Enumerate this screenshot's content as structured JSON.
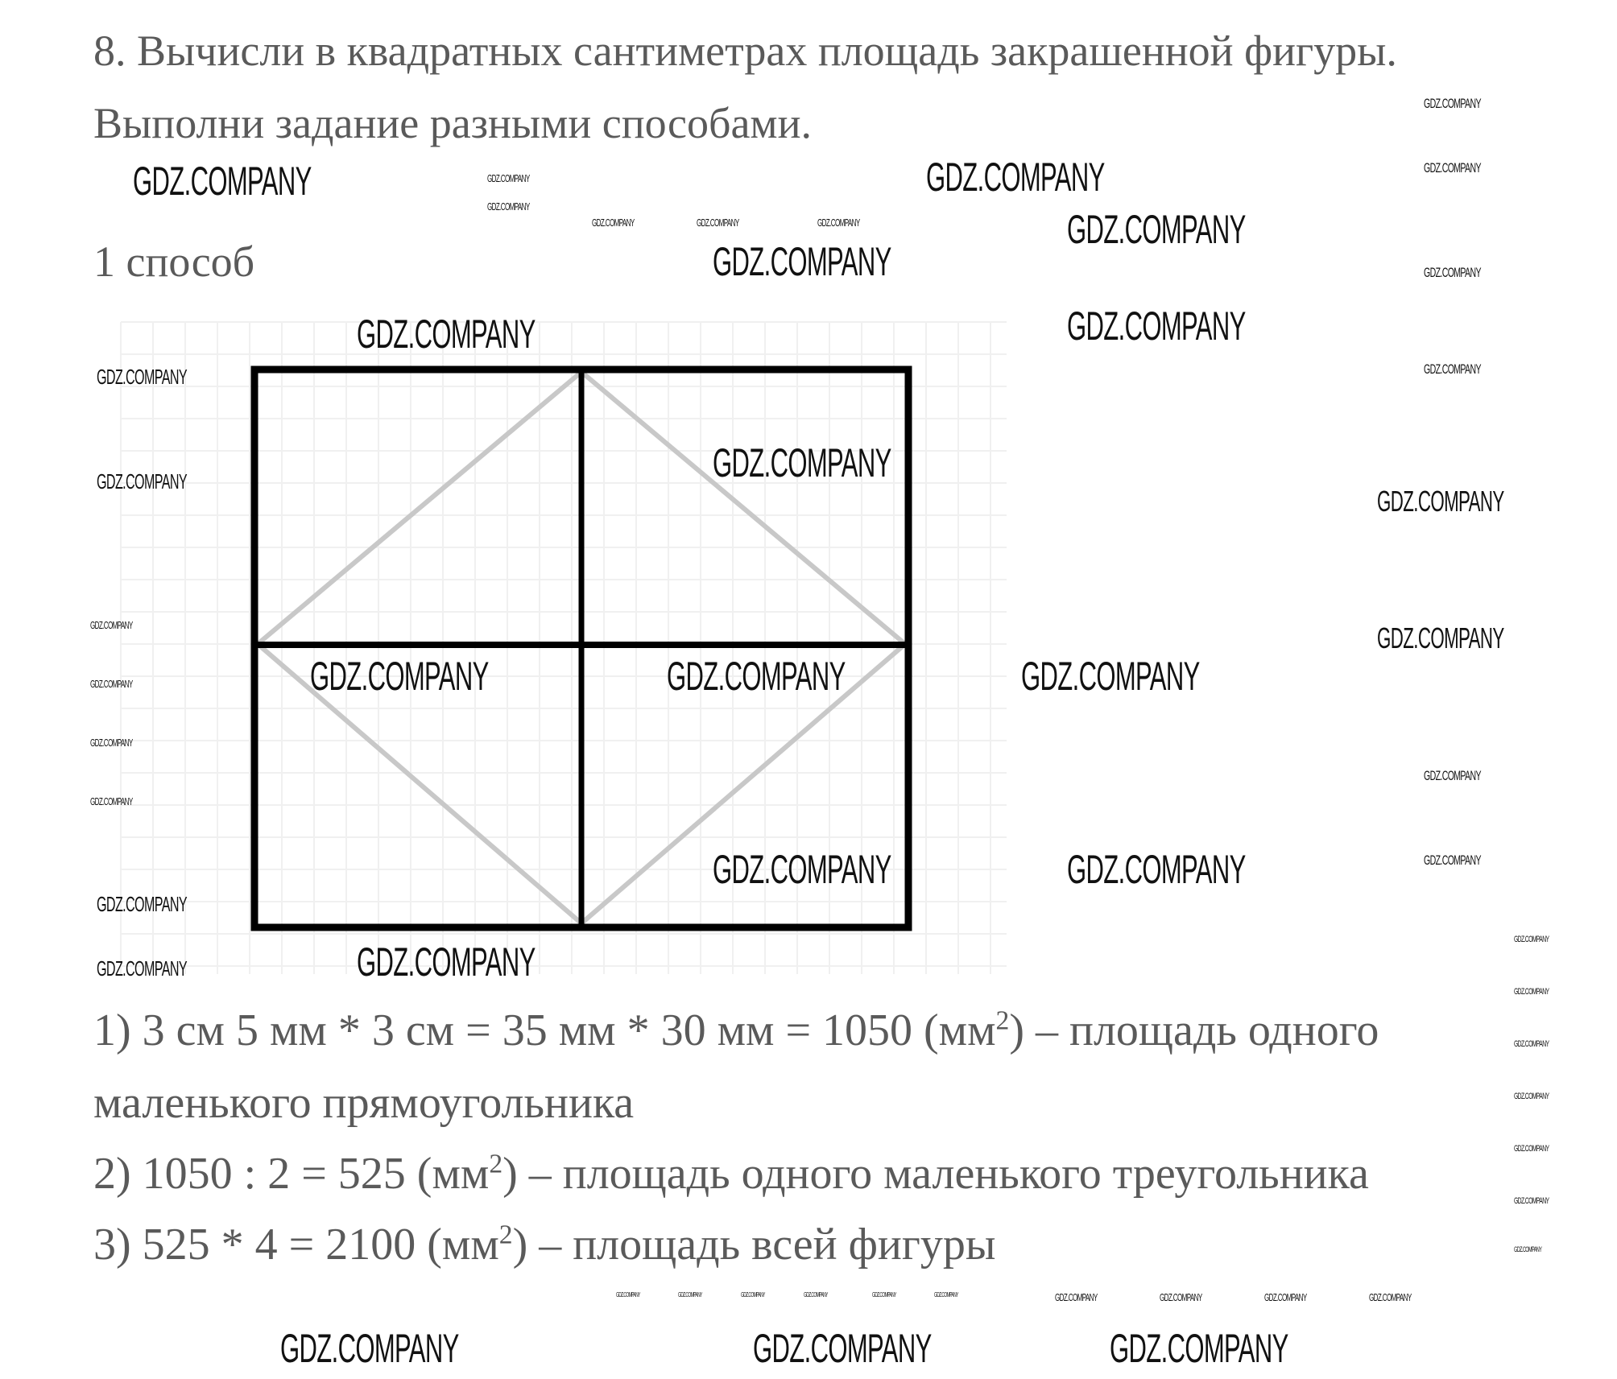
{
  "task": {
    "line1": "8. Вычисли в квадратных сантиметрах площадь закрашенной фигуры.",
    "line2": "Выполни задание разными способами."
  },
  "method_heading": "1 способ",
  "solution": [
    {
      "main": "1) 3 см 5 мм * 3 см = 35 мм * 30 мм = 1050 (мм",
      "sup": "2",
      "tail": ") – площадь одного"
    },
    {
      "main": "маленького прямоугольника",
      "sup": "",
      "tail": ""
    },
    {
      "main": "2) 1050 : 2 = 525 (мм",
      "sup": "2",
      "tail": ") – площадь одного маленького треугольника"
    },
    {
      "main": "3) 525 * 4 = 2100 (мм",
      "sup": "2",
      "tail": ") – площадь всей фигуры"
    }
  ],
  "watermark": "GDZ.COMPANY",
  "colors": {
    "text": "#5a5a5a",
    "frame": "#000000",
    "diamond": "#c8c8c8",
    "grid": "#eeeeee"
  }
}
